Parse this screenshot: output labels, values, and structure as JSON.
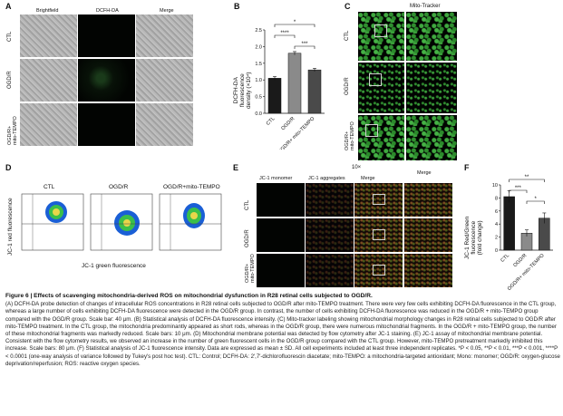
{
  "panels": {
    "A": {
      "label": "A",
      "columns": [
        "Brightfield",
        "DCFH-DA",
        "Merge"
      ],
      "rows": [
        "CTL",
        "OGD/R",
        "OGD/R+\nmito-TEMPO"
      ]
    },
    "B": {
      "label": "B",
      "ylabel": "DCFH-DA\nfluorescence\ndensity (×10⁴)",
      "significance": [
        "*",
        "****",
        "***"
      ]
    },
    "C": {
      "label": "C",
      "title": "Mito-Tracker",
      "rows": [
        "CTL",
        "OGD/R",
        "OGD/R+\nmito-TEMPO"
      ]
    },
    "D": {
      "label": "D",
      "groups": [
        "CTL",
        "OGD/R",
        "OGD/R+mito-TEMPO"
      ],
      "ylabel": "JC-1 red fluorescence",
      "xlabel": "JC-1 green fluorescence"
    },
    "E": {
      "label": "E",
      "magnification": "10×",
      "columns": [
        "JC-1 monomer",
        "JC-1 aggregates",
        "Merge"
      ],
      "rows": [
        "CTL",
        "OGD/R",
        "OGD/R+\nmito-TEMPO"
      ]
    },
    "F": {
      "label": "F",
      "ylabel": "JC-1 Red/Green\nfluorescence\n(fold change)",
      "significance": [
        "**",
        "***",
        "*"
      ]
    }
  },
  "chart_data": [
    {
      "type": "bar",
      "panel": "B",
      "categories": [
        "CTL",
        "OGD/R",
        "OGD/R+\nmito-TEMPO"
      ],
      "values": [
        1.05,
        1.8,
        1.3
      ],
      "errors": [
        0.05,
        0.05,
        0.05
      ],
      "ylabel": "DCFH-DA\nfluorescence\ndensity (×10⁴)",
      "ylim": [
        0,
        2.5
      ],
      "yticks": [
        "0.0",
        "0.5",
        "1.0",
        "1.5",
        "2.0",
        "2.5"
      ],
      "colors": [
        "#1a1a1a",
        "#8a8a8a",
        "#4a4a4a"
      ]
    },
    {
      "type": "bar",
      "panel": "F",
      "categories": [
        "CTL",
        "OGD/R",
        "OGD/R+\nmito-TEMPO"
      ],
      "values": [
        8.2,
        2.6,
        4.9
      ],
      "errors": [
        0.9,
        0.5,
        0.8
      ],
      "ylabel": "JC-1 Red/Green\nfluorescence\n(fold change)",
      "ylim": [
        0,
        10
      ],
      "yticks": [
        "0",
        "2",
        "4",
        "6",
        "8",
        "10"
      ],
      "colors": [
        "#1a1a1a",
        "#8a8a8a",
        "#4a4a4a"
      ]
    }
  ],
  "caption": {
    "title": "Figure 6  |  Effects of scavenging mitochondria-derived ROS on mitochondrial dysfunction in R28 retinal cells subjected to OGD/R.",
    "body": "(A) DCFH-DA probe detection of changes of intracellular ROS concentrations in R28 retinal cells subjected to OGD/R after mito-TEMPO treatment. There were very few cells exhibiting DCFH-DA fluorescence in the CTL group, whereas a large number of cells exhibiting DCFH-DA fluorescence were detected in the OGD/R group. In contrast, the number of cells exhibiting DCFH-DA fluorescence was reduced in the OGD/R + mito-TEMPO group compared with the OGD/R group. Scale bar: 40 μm. (B) Statistical analysis of DCFH-DA fluorescence intensity. (C) Mito-tracker labeling showing mitochondrial morphology changes in R28 retinal cells subjected to OGD/R after mito-TEMPO treatment. In the CTL group, the mitochondria predominantly appeared as short rods, whereas in the OGD/R group, there were numerous mitochondrial fragments. In the OGD/R + mito-TEMPO group, the number of these mitochondrial fragments was markedly reduced. Scale bars: 10 μm. (D) Mitochondrial membrane potential was detected by flow cytometry after JC-1 staining. (E) JC-1 assay of mitochondrial membrane potential. Consistent with the flow cytometry results, we observed an increase in the number of green fluorescent cells in the OGD/R group compared with the CTL group. However, mito-TEMPO pretreatment markedly inhibited this increase. Scale bars: 80 μm. (F) Statistical analysis of JC-1 fluorescence intensity. Data are expressed as mean ± SD. All cell experiments included at least three independent replicates. *P < 0.05, **P < 0.01, ***P < 0.001, ****P < 0.0001 (one-way analysis of variance followed by Tukey's post hoc test). CTL: Control; DCFH-DA: 2′,7′-dichlorofluorescin diacetate; mito-TEMPO: a mitochondria-targeted antioxidant; Mono: monomer; OGD/R: oxygen-glucose deprivation/reperfusion; ROS: reactive oxygen species."
  }
}
